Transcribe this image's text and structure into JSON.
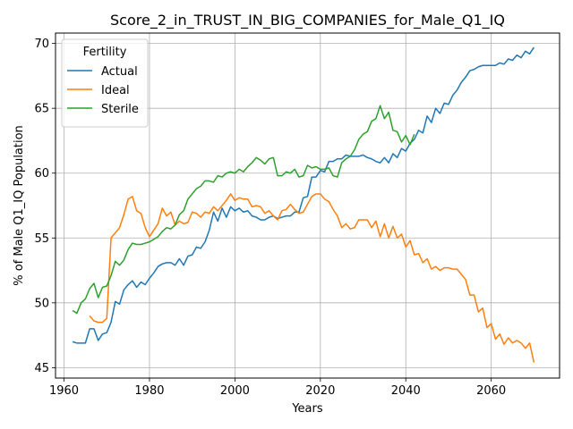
{
  "chart_data": {
    "type": "line",
    "title": "Score_2_in_TRUST_IN_BIG_COMPANIES_for_Male_Q1_IQ",
    "xlabel": "Years",
    "ylabel": "% of Male Q1_IQ Population",
    "xlim": [
      1958,
      2076
    ],
    "ylim": [
      44.2,
      70.8
    ],
    "xticks": [
      1960,
      1980,
      2000,
      2020,
      2040,
      2060
    ],
    "yticks": [
      45,
      50,
      55,
      60,
      65,
      70
    ],
    "grid": true,
    "legend": {
      "title": "Fertility",
      "position": "top-left"
    },
    "series": [
      {
        "name": "Actual",
        "color": "#1f77b4",
        "x": [
          1962,
          1963,
          1964,
          1965,
          1966,
          1967,
          1968,
          1969,
          1970,
          1971,
          1972,
          1973,
          1974,
          1975,
          1976,
          1977,
          1978,
          1979,
          1980,
          1981,
          1982,
          1983,
          1984,
          1985,
          1986,
          1987,
          1988,
          1989,
          1990,
          1991,
          1992,
          1993,
          1994,
          1995,
          1996,
          1997,
          1998,
          1999,
          2000,
          2001,
          2002,
          2003,
          2004,
          2005,
          2006,
          2007,
          2008,
          2009,
          2010,
          2011,
          2012,
          2013,
          2014,
          2015,
          2016,
          2017,
          2018,
          2019,
          2020,
          2021,
          2022,
          2023,
          2024,
          2025,
          2026,
          2027,
          2028,
          2029,
          2030,
          2031,
          2032,
          2033,
          2034,
          2035,
          2036,
          2037,
          2038,
          2039,
          2040,
          2041,
          2042,
          2043,
          2044,
          2045,
          2046,
          2047,
          2048,
          2049,
          2050,
          2051,
          2052,
          2053,
          2054,
          2055,
          2056,
          2057,
          2058,
          2059,
          2060,
          2061,
          2062,
          2063,
          2064,
          2065,
          2066,
          2067,
          2068,
          2069,
          2070
        ],
        "values": [
          47.0,
          46.9,
          46.9,
          46.9,
          48.0,
          48.0,
          47.1,
          47.6,
          47.7,
          48.5,
          50.1,
          49.9,
          51.0,
          51.4,
          51.7,
          51.2,
          51.6,
          51.4,
          51.9,
          52.3,
          52.8,
          53.0,
          53.1,
          53.1,
          52.9,
          53.4,
          52.9,
          53.6,
          53.7,
          54.3,
          54.2,
          54.7,
          55.6,
          57.0,
          56.3,
          57.3,
          56.6,
          57.4,
          57.1,
          57.3,
          57.0,
          57.1,
          56.7,
          56.6,
          56.4,
          56.4,
          56.6,
          56.7,
          56.5,
          56.6,
          56.7,
          56.7,
          57.0,
          57.0,
          58.1,
          58.2,
          59.7,
          59.7,
          60.2,
          60.1,
          60.9,
          60.9,
          61.1,
          61.1,
          61.4,
          61.3,
          61.3,
          61.3,
          61.4,
          61.2,
          61.1,
          60.9,
          60.8,
          61.2,
          60.8,
          61.5,
          61.2,
          61.9,
          61.7,
          62.3,
          62.6,
          63.3,
          63.1,
          64.4,
          63.9,
          65.0,
          64.6,
          65.4,
          65.3,
          66.0,
          66.4,
          67.0,
          67.4,
          67.9,
          68.0,
          68.2,
          68.3,
          68.3,
          68.3,
          68.3,
          68.5,
          68.4,
          68.8,
          68.7,
          69.1,
          68.9,
          69.4,
          69.2,
          69.7
        ]
      },
      {
        "name": "Ideal",
        "color": "#ff7f0e",
        "x": [
          1966,
          1967,
          1968,
          1969,
          1970,
          1971,
          1972,
          1973,
          1974,
          1975,
          1976,
          1977,
          1978,
          1979,
          1980,
          1981,
          1982,
          1983,
          1984,
          1985,
          1986,
          1987,
          1988,
          1989,
          1990,
          1991,
          1992,
          1993,
          1994,
          1995,
          1996,
          1997,
          1998,
          1999,
          2000,
          2001,
          2002,
          2003,
          2004,
          2005,
          2006,
          2007,
          2008,
          2009,
          2010,
          2011,
          2012,
          2013,
          2014,
          2015,
          2016,
          2017,
          2018,
          2019,
          2020,
          2021,
          2022,
          2023,
          2024,
          2025,
          2026,
          2027,
          2028,
          2029,
          2030,
          2031,
          2032,
          2033,
          2034,
          2035,
          2036,
          2037,
          2038,
          2039,
          2040,
          2041,
          2042,
          2043,
          2044,
          2045,
          2046,
          2047,
          2048,
          2049,
          2050,
          2051,
          2052,
          2053,
          2054,
          2055,
          2056,
          2057,
          2058,
          2059,
          2060,
          2061,
          2062,
          2063,
          2064,
          2065,
          2066,
          2067,
          2068,
          2069,
          2070
        ],
        "values": [
          49.0,
          48.6,
          48.5,
          48.5,
          48.8,
          55.0,
          55.4,
          55.8,
          56.8,
          58.0,
          58.2,
          57.1,
          56.9,
          55.8,
          55.1,
          55.6,
          56.1,
          57.3,
          56.7,
          57.0,
          56.0,
          56.3,
          56.1,
          56.2,
          57.0,
          56.9,
          56.6,
          57.0,
          56.9,
          57.4,
          57.1,
          57.5,
          57.9,
          58.4,
          57.9,
          58.1,
          58.0,
          58.0,
          57.4,
          57.5,
          57.4,
          56.9,
          57.1,
          56.7,
          56.4,
          57.1,
          57.2,
          57.6,
          57.2,
          56.9,
          57.0,
          57.6,
          58.2,
          58.4,
          58.4,
          58.0,
          57.8,
          57.2,
          56.7,
          55.8,
          56.1,
          55.7,
          55.8,
          56.4,
          56.4,
          56.4,
          55.8,
          56.3,
          55.1,
          56.1,
          55.0,
          55.9,
          55.0,
          55.3,
          54.3,
          54.8,
          53.7,
          53.8,
          53.1,
          53.4,
          52.6,
          52.8,
          52.5,
          52.7,
          52.7,
          52.6,
          52.6,
          52.2,
          51.8,
          50.6,
          50.6,
          49.3,
          49.6,
          48.1,
          48.4,
          47.2,
          47.6,
          46.8,
          47.3,
          46.9,
          47.1,
          46.9,
          46.5,
          46.9,
          45.4
        ]
      },
      {
        "name": "Sterile",
        "color": "#2ca02c",
        "x": [
          1962,
          1963,
          1964,
          1965,
          1966,
          1967,
          1968,
          1969,
          1970,
          1971,
          1972,
          1973,
          1974,
          1975,
          1976,
          1977,
          1978,
          1979,
          1980,
          1981,
          1982,
          1983,
          1984,
          1985,
          1986,
          1987,
          1988,
          1989,
          1990,
          1991,
          1992,
          1993,
          1994,
          1995,
          1996,
          1997,
          1998,
          1999,
          2000,
          2001,
          2002,
          2003,
          2004,
          2005,
          2006,
          2007,
          2008,
          2009,
          2010,
          2011,
          2012,
          2013,
          2014,
          2015,
          2016,
          2017,
          2018,
          2019,
          2020,
          2021,
          2022,
          2023,
          2024,
          2025,
          2026,
          2027,
          2028,
          2029,
          2030,
          2031,
          2032,
          2033,
          2034,
          2035,
          2036,
          2037,
          2038,
          2039,
          2040,
          2041,
          2042
        ],
        "values": [
          49.4,
          49.2,
          50.0,
          50.3,
          51.1,
          51.5,
          50.4,
          51.2,
          51.3,
          52.1,
          53.2,
          52.9,
          53.3,
          54.1,
          54.6,
          54.5,
          54.5,
          54.6,
          54.7,
          54.9,
          55.1,
          55.5,
          55.8,
          55.7,
          56.0,
          56.8,
          57.1,
          58.0,
          58.4,
          58.8,
          59.0,
          59.4,
          59.4,
          59.3,
          59.8,
          59.7,
          60.0,
          60.1,
          60.0,
          60.3,
          60.1,
          60.5,
          60.8,
          61.2,
          61.0,
          60.7,
          61.1,
          61.2,
          59.8,
          59.8,
          60.1,
          60.0,
          60.3,
          59.7,
          59.8,
          60.6,
          60.4,
          60.5,
          60.3,
          60.3,
          60.4,
          59.8,
          59.7,
          60.8,
          61.1,
          61.3,
          61.8,
          62.6,
          63.0,
          63.2,
          64.0,
          64.2,
          65.2,
          64.2,
          64.7,
          63.3,
          63.2,
          62.4,
          62.9,
          62.2,
          63.0
        ]
      }
    ]
  }
}
